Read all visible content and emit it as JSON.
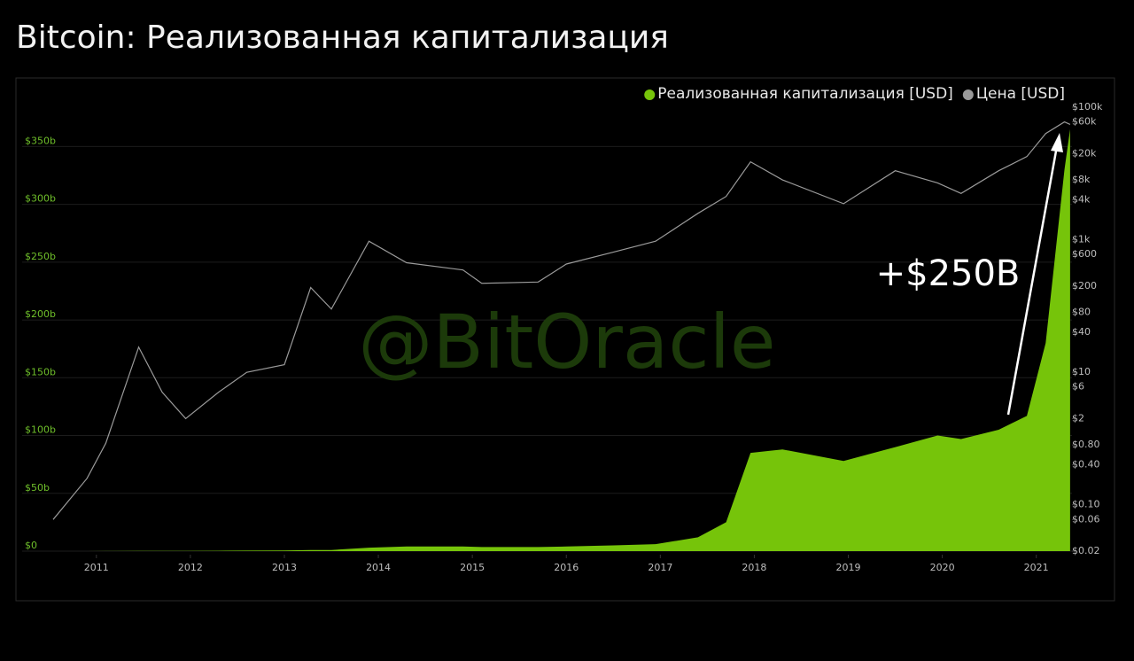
{
  "chart_data": {
    "type": "combo",
    "title": "Bitcoin: Реализованная капитализация",
    "watermark": "@BitOracle",
    "annotation": "+$250B",
    "x": [
      2010.54,
      2010.9,
      2011.1,
      2011.45,
      2011.7,
      2011.95,
      2012.3,
      2012.6,
      2013.0,
      2013.28,
      2013.5,
      2013.9,
      2014.3,
      2014.9,
      2015.1,
      2015.7,
      2016.0,
      2016.5,
      2016.95,
      2017.4,
      2017.7,
      2017.96,
      2018.3,
      2018.95,
      2019.5,
      2019.95,
      2020.2,
      2020.6,
      2020.9,
      2021.1,
      2021.3,
      2021.36
    ],
    "series": [
      {
        "name": "Реализованная капитализация [USD]",
        "type": "area",
        "color": "#76c40a",
        "values": [
          0.01,
          0.02,
          0.05,
          0.2,
          0.2,
          0.2,
          0.3,
          0.5,
          0.6,
          1,
          1,
          3,
          4,
          4,
          3.5,
          3.5,
          4,
          5,
          6,
          12,
          25,
          85,
          88,
          78,
          90,
          100,
          97,
          105,
          117,
          180,
          330,
          365
        ]
      },
      {
        "name": "Цена [USD]",
        "type": "line",
        "axis": "y2",
        "color": "#9a9a9a",
        "values": [
          0.06,
          0.25,
          0.85,
          24,
          5,
          2,
          5,
          10,
          13,
          190,
          90,
          950,
          450,
          350,
          220,
          230,
          430,
          650,
          950,
          2500,
          4500,
          15000,
          8000,
          3500,
          11000,
          7200,
          5000,
          11000,
          18000,
          40000,
          60000,
          55000
        ]
      }
    ],
    "xlim": [
      2010.54,
      2021.38
    ],
    "xticks": [
      2011,
      2012,
      2013,
      2014,
      2015,
      2016,
      2017,
      2018,
      2019,
      2020,
      2021
    ],
    "ylim": [
      0,
      384
    ],
    "yticks": [
      {
        "value": 0,
        "label": "$0"
      },
      {
        "value": 50,
        "label": "$50b"
      },
      {
        "value": 100,
        "label": "$100b"
      },
      {
        "value": 150,
        "label": "$150b"
      },
      {
        "value": 200,
        "label": "$200b"
      },
      {
        "value": 250,
        "label": "$250b"
      },
      {
        "value": 300,
        "label": "$300b"
      },
      {
        "value": 350,
        "label": "$350b"
      }
    ],
    "y2lim": [
      0.02,
      100000
    ],
    "y2log": true,
    "y2ticks": [
      {
        "value": 100000,
        "label": "$100k"
      },
      {
        "value": 60000,
        "label": "$60k"
      },
      {
        "value": 20000,
        "label": "$20k"
      },
      {
        "value": 8000,
        "label": "$8k"
      },
      {
        "value": 4000,
        "label": "$4k"
      },
      {
        "value": 1000,
        "label": "$1k"
      },
      {
        "value": 600,
        "label": "$600"
      },
      {
        "value": 200,
        "label": "$200"
      },
      {
        "value": 80,
        "label": "$80"
      },
      {
        "value": 40,
        "label": "$40"
      },
      {
        "value": 10,
        "label": "$10"
      },
      {
        "value": 6,
        "label": "$6"
      },
      {
        "value": 2,
        "label": "$2"
      },
      {
        "value": 0.8,
        "label": "$0.80"
      },
      {
        "value": 0.4,
        "label": "$0.40"
      },
      {
        "value": 0.1,
        "label": "$0.10"
      },
      {
        "value": 0.06,
        "label": "$0.06"
      },
      {
        "value": 0.02,
        "label": "$0.02"
      }
    ],
    "grid": true,
    "legend": "top-right"
  }
}
